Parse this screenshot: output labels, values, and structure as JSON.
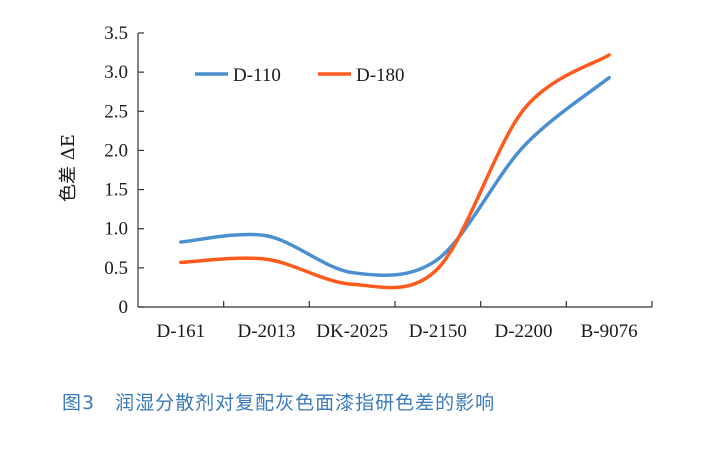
{
  "chart_data": {
    "type": "line",
    "title": "",
    "xlabel": "",
    "ylabel": "色差 ΔE",
    "categories": [
      "D-161",
      "D-2013",
      "DK-2025",
      "D-2150",
      "D-2200",
      "B-9076"
    ],
    "yticks": [
      "0",
      "0.5",
      "1.0",
      "1.5",
      "2.0",
      "2.5",
      "3.0",
      "3.5"
    ],
    "ylim": [
      0,
      3.5
    ],
    "legend_position": "top",
    "series": [
      {
        "name": "D-110",
        "color": "#4a90d0",
        "values": [
          0.83,
          0.91,
          0.44,
          0.61,
          2.05,
          2.93
        ]
      },
      {
        "name": "D-180",
        "color": "#ff5a1e",
        "values": [
          0.57,
          0.61,
          0.29,
          0.49,
          2.52,
          3.22
        ]
      }
    ]
  },
  "caption": "图3　润湿分散剂对复配灰色面漆指研色差的影响"
}
